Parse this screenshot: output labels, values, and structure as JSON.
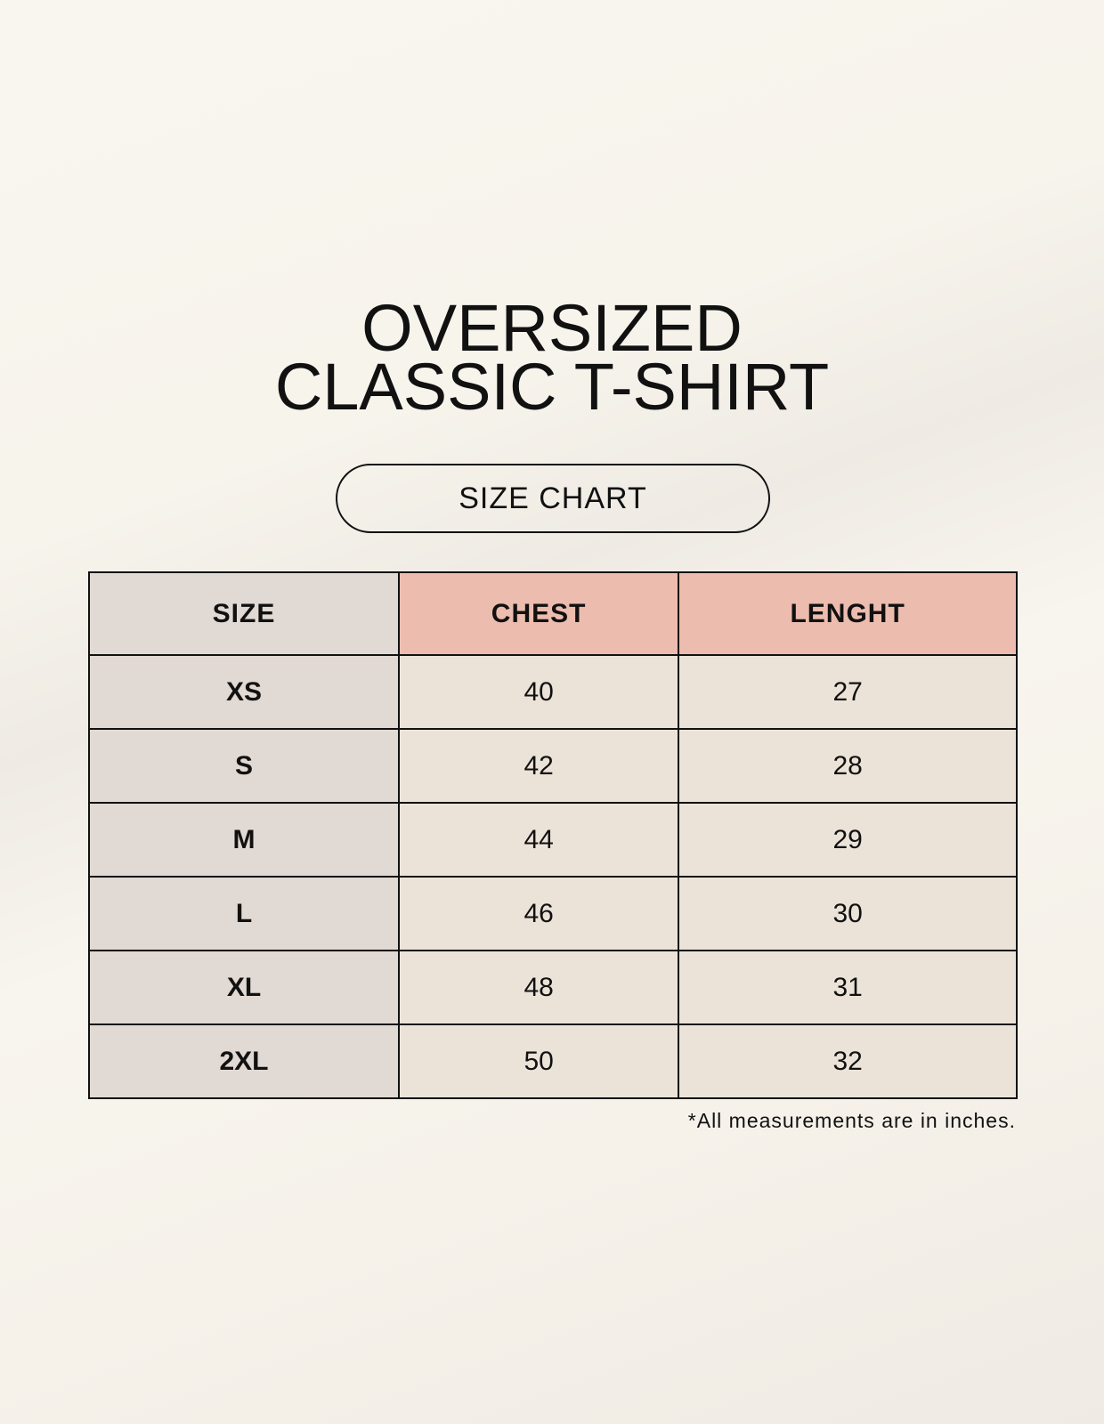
{
  "title": {
    "line1": "OVERSIZED",
    "line2": "CLASSIC T-SHIRT"
  },
  "badge": "SIZE CHART",
  "table": {
    "headers": [
      "SIZE",
      "CHEST",
      "LENGHT"
    ],
    "rows": [
      [
        "XS",
        "40",
        "27"
      ],
      [
        "S",
        "42",
        "28"
      ],
      [
        "M",
        "44",
        "29"
      ],
      [
        "L",
        "46",
        "30"
      ],
      [
        "XL",
        "48",
        "31"
      ],
      [
        "2XL",
        "50",
        "32"
      ]
    ]
  },
  "note": "*All measurements are in inches.",
  "colors": {
    "size_column": "#e1d9d3",
    "header_accent": "#ecbcae",
    "cells": "#ebe3d8"
  }
}
